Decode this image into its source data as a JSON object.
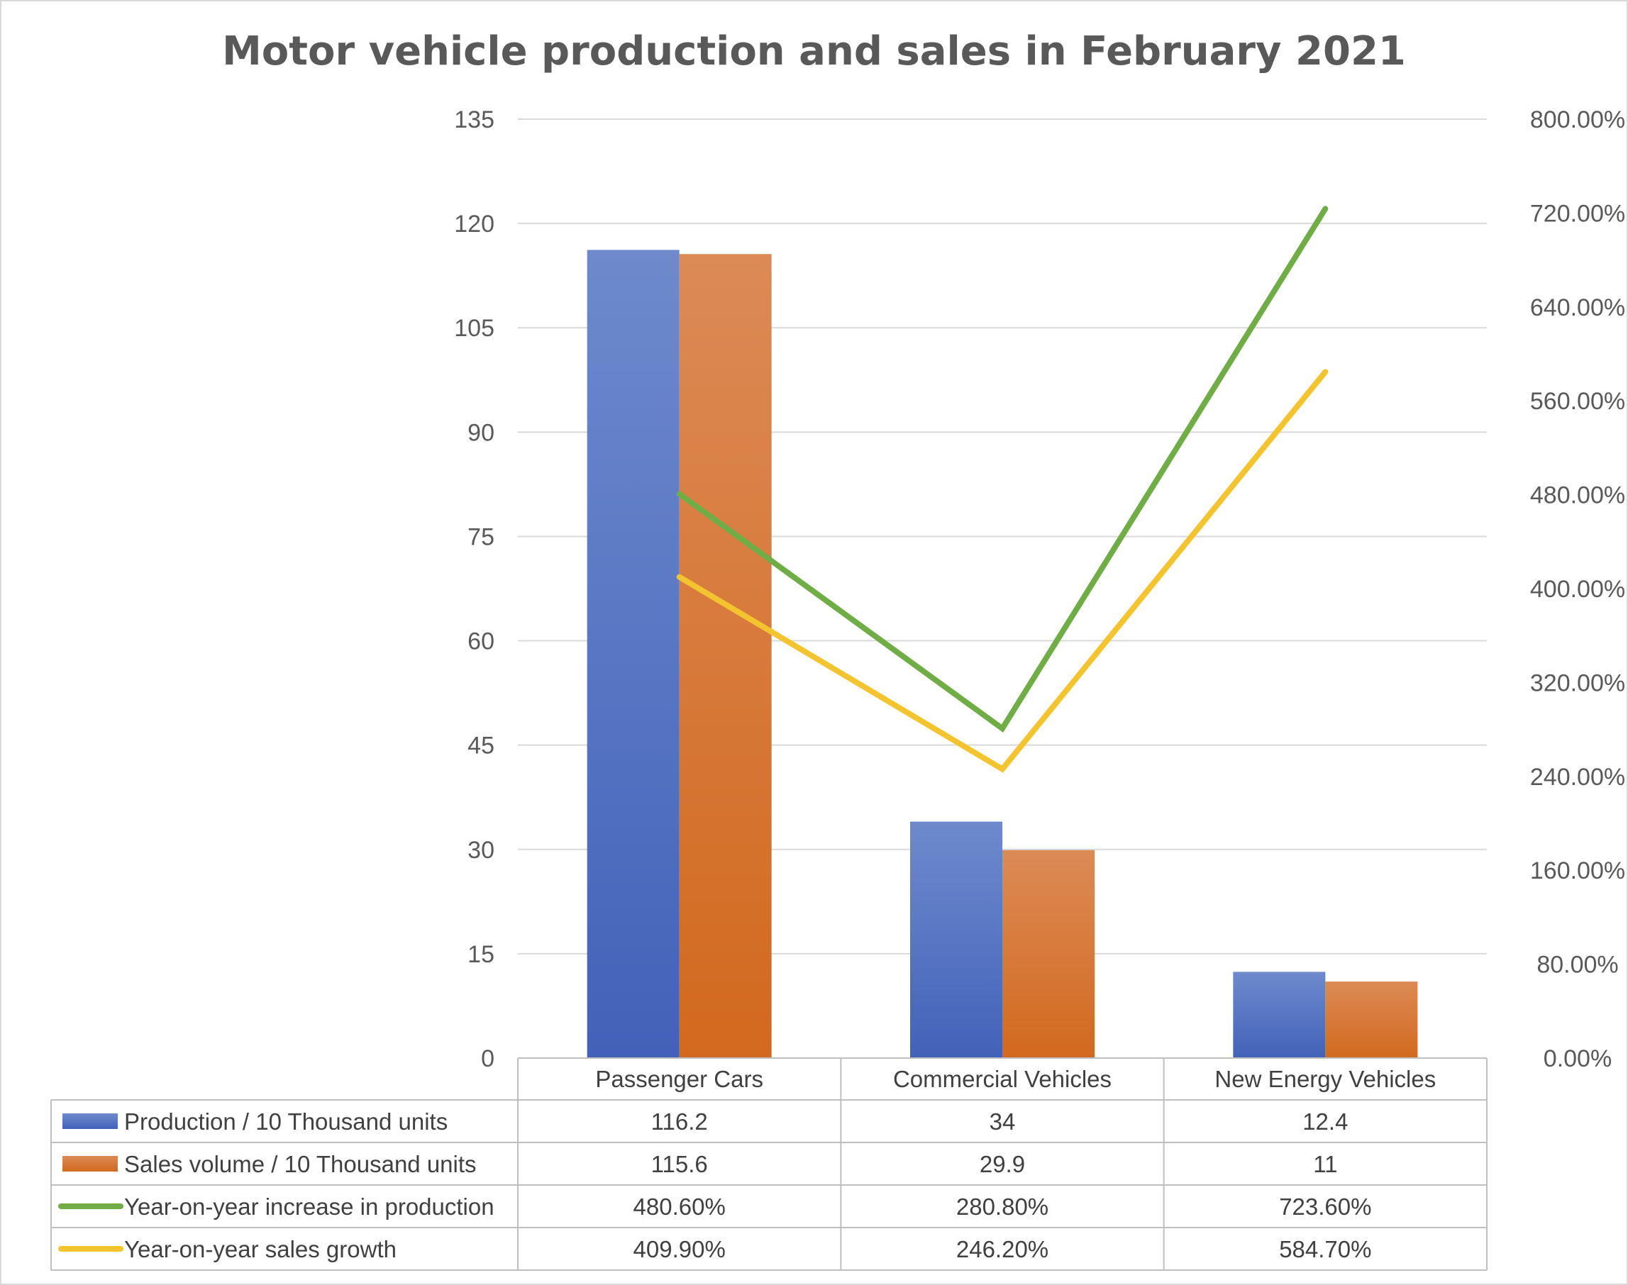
{
  "chart_data": {
    "type": "bar",
    "title": "Motor vehicle production and sales in February 2021",
    "categories": [
      "Passenger Cars",
      "Commercial Vehicles",
      "New Energy Vehicles"
    ],
    "series": [
      {
        "name": "Production / 10 Thousand units",
        "type": "bar",
        "axis": "left",
        "color": "#4472C4",
        "values": [
          116.2,
          34,
          12.4
        ],
        "labels": [
          "116.2",
          "34",
          "12.4"
        ]
      },
      {
        "name": "Sales volume / 10 Thousand units",
        "type": "bar",
        "axis": "left",
        "color": "#ED7D31",
        "values": [
          115.6,
          29.9,
          11
        ],
        "labels": [
          "115.6",
          "29.9",
          "11"
        ]
      },
      {
        "name": "Year-on-year increase in production",
        "type": "line",
        "axis": "right",
        "color": "#70AD47",
        "values": [
          480.6,
          280.8,
          723.6
        ],
        "labels": [
          "480.60%",
          "280.80%",
          "723.60%"
        ]
      },
      {
        "name": "Year-on-year sales growth",
        "type": "line",
        "axis": "right",
        "color": "#F4C430",
        "values": [
          409.9,
          246.2,
          584.7
        ],
        "labels": [
          "409.90%",
          "246.20%",
          "584.70%"
        ]
      }
    ],
    "left_axis": {
      "range": [
        0,
        135
      ],
      "ticks": [
        "0",
        "15",
        "30",
        "45",
        "60",
        "75",
        "90",
        "105",
        "120",
        "135"
      ]
    },
    "right_axis": {
      "range": [
        0,
        800
      ],
      "unit": "%",
      "ticks": [
        "0.00%",
        "80.00%",
        "160.00%",
        "240.00%",
        "320.00%",
        "400.00%",
        "480.00%",
        "560.00%",
        "640.00%",
        "720.00%",
        "800.00%"
      ]
    },
    "grid": true,
    "legend": "data-table-below"
  }
}
